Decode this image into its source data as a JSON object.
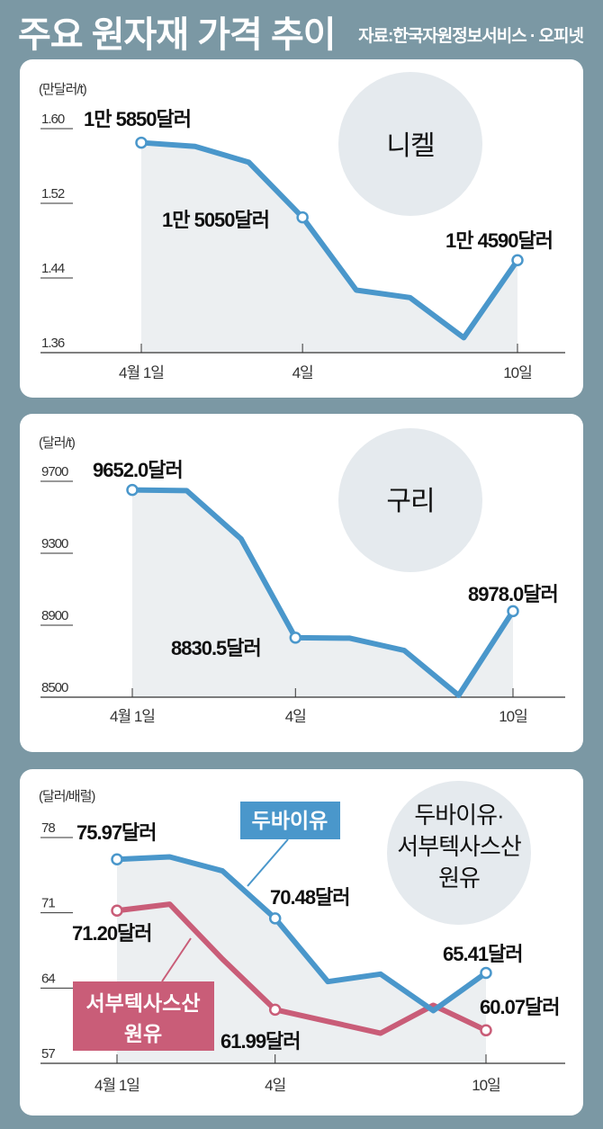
{
  "header": {
    "title": "주요 원자재 가격 추이",
    "source": "자료:한국자원정보서비스 · 오피넷"
  },
  "colors": {
    "background": "#7b98a4",
    "panel": "#ffffff",
    "area": "#eceff1",
    "circle": "#e5eaee",
    "blue": "#4a97cb",
    "red": "#c95d78"
  },
  "chart_data": [
    {
      "type": "line",
      "title": "니켈",
      "ylabel": "(만달러/t)",
      "yticks": [
        "1.60",
        "1.52",
        "1.44",
        "1.36"
      ],
      "ylim": [
        1.36,
        1.6
      ],
      "x": [
        "4월 1일",
        "",
        "",
        "4일",
        "",
        "",
        "",
        "10일"
      ],
      "xtick_labels": [
        "4월 1일",
        "4일",
        "10일"
      ],
      "series": [
        {
          "name": "니켈",
          "values": [
            1.585,
            1.581,
            1.564,
            1.505,
            1.427,
            1.419,
            1.376,
            1.459
          ]
        }
      ],
      "annotations": [
        {
          "index": 0,
          "text": "1만 5850달러"
        },
        {
          "index": 3,
          "text": "1만 5050달러"
        },
        {
          "index": 7,
          "text": "1만 4590달러"
        }
      ]
    },
    {
      "type": "line",
      "title": "구리",
      "ylabel": "(달러/t)",
      "yticks": [
        "9700",
        "9300",
        "8900",
        "8500"
      ],
      "ylim": [
        8500,
        9700
      ],
      "x": [
        "4월 1일",
        "",
        "",
        "4일",
        "",
        "",
        "",
        "10일"
      ],
      "xtick_labels": [
        "4월 1일",
        "4일",
        "10일"
      ],
      "series": [
        {
          "name": "구리",
          "values": [
            9652.0,
            9648,
            9380,
            8830.5,
            8828,
            8760,
            8510,
            8978.0
          ]
        }
      ],
      "annotations": [
        {
          "index": 0,
          "text": "9652.0달러"
        },
        {
          "index": 3,
          "text": "8830.5달러"
        },
        {
          "index": 7,
          "text": "8978.0달러"
        }
      ]
    },
    {
      "type": "line",
      "title": "두바이유·\n서부텍사스산\n원유",
      "title_lines": [
        "두바이유·",
        "서부텍사스산",
        "원유"
      ],
      "ylabel": "(달러/배럴)",
      "yticks": [
        "78",
        "71",
        "64",
        "57"
      ],
      "ylim": [
        57,
        78
      ],
      "x": [
        "4월 1일",
        "",
        "",
        "4일",
        "",
        "",
        "",
        "10일"
      ],
      "xtick_labels": [
        "4월 1일",
        "4일",
        "10일"
      ],
      "series": [
        {
          "name": "두바이유",
          "values": [
            75.97,
            76.2,
            74.9,
            70.48,
            64.6,
            65.3,
            61.9,
            65.41
          ]
        },
        {
          "name_lines": [
            "서부텍사스산",
            "원유"
          ],
          "name": "서부텍사스산 원유",
          "values": [
            71.2,
            71.8,
            66.7,
            61.99,
            60.9,
            59.8,
            62.4,
            60.07
          ]
        }
      ],
      "annotations": [
        {
          "series": 0,
          "index": 0,
          "text": "75.97달러"
        },
        {
          "series": 0,
          "index": 3,
          "text": "70.48달러"
        },
        {
          "series": 0,
          "index": 7,
          "text": "65.41달러"
        },
        {
          "series": 1,
          "index": 0,
          "text": "71.20달러"
        },
        {
          "series": 1,
          "index": 3,
          "text": "61.99달러"
        },
        {
          "series": 1,
          "index": 7,
          "text": "60.07달러"
        }
      ]
    }
  ]
}
